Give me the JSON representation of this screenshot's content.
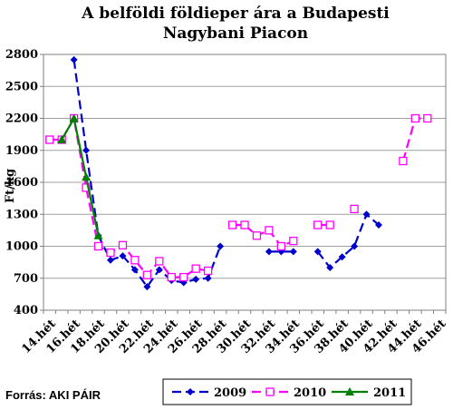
{
  "chart_data": {
    "type": "line",
    "title_line1": "A belföldi földieper ára a Budapesti",
    "title_line2": "Nagybani Piacon",
    "ylabel": "Ft/kg",
    "ylim": [
      400,
      2800
    ],
    "yticks": [
      400,
      700,
      1000,
      1300,
      1600,
      1900,
      2200,
      2500,
      2800
    ],
    "categories": [
      "14.hét",
      "15.hét",
      "16.hét",
      "17.hét",
      "18.hét",
      "19.hét",
      "20.hét",
      "21.hét",
      "22.hét",
      "23.hét",
      "24.hét",
      "25.hét",
      "26.hét",
      "27.hét",
      "28.hét",
      "29.hét",
      "30.hét",
      "31.hét",
      "32.hét",
      "33.hét",
      "34.hét",
      "35.hét",
      "36.hét",
      "37.hét",
      "38.hét",
      "39.hét",
      "40.hét",
      "41.hét",
      "42.hét",
      "43.hét",
      "44.hét",
      "45.hét",
      "46.hét"
    ],
    "xtick_labels": [
      "14.hét",
      "16.hét",
      "18.hét",
      "20.hét",
      "22.hét",
      "24.hét",
      "26.hét",
      "28.hét",
      "30.hét",
      "32.hét",
      "34.hét",
      "36.hét",
      "38.hét",
      "40.hét",
      "42.hét",
      "44.hét",
      "46.hét"
    ],
    "grid": "horizontal",
    "legend_position": "bottom",
    "series": [
      {
        "name": "2009",
        "color": "#0000cc",
        "marker": "diamond",
        "values": [
          null,
          null,
          2750,
          1900,
          1100,
          870,
          910,
          780,
          620,
          780,
          680,
          660,
          690,
          700,
          1000,
          null,
          null,
          null,
          950,
          950,
          950,
          null,
          950,
          800,
          900,
          1000,
          1300,
          1200,
          null,
          null,
          null,
          null,
          null
        ]
      },
      {
        "name": "2010",
        "color": "#ff00ff",
        "marker": "square",
        "values": [
          2000,
          2000,
          2200,
          1550,
          1000,
          940,
          1010,
          870,
          730,
          860,
          710,
          710,
          790,
          770,
          null,
          1200,
          1200,
          1100,
          1150,
          1000,
          1050,
          null,
          1200,
          1200,
          null,
          1350,
          null,
          null,
          null,
          1800,
          2200,
          2200,
          null
        ]
      },
      {
        "name": "2011",
        "color": "#008000",
        "marker": "triangle",
        "values": [
          null,
          2000,
          2200,
          1650,
          1100,
          null,
          null,
          null,
          null,
          null,
          null,
          null,
          null,
          null,
          null,
          null,
          null,
          null,
          null,
          null,
          null,
          null,
          null,
          null,
          null,
          null,
          null,
          null,
          null,
          null,
          null,
          null,
          null
        ]
      }
    ]
  },
  "source": "Forrás: AKI PÁIR"
}
